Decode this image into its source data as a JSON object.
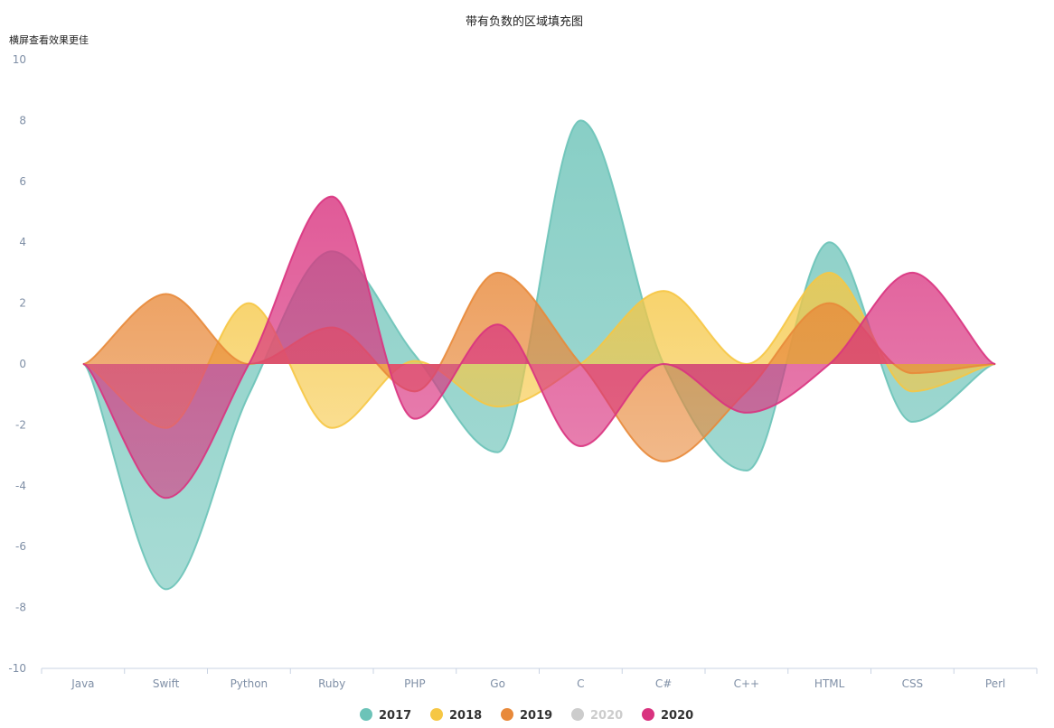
{
  "chart_data": {
    "type": "area",
    "title": "带有负数的区域填充图",
    "subtitle": "横屏查看效果更佳",
    "categories": [
      "Java",
      "Swift",
      "Python",
      "Ruby",
      "PHP",
      "Go",
      "C",
      "C#",
      "C++",
      "HTML",
      "CSS",
      "Perl"
    ],
    "ylim": [
      -10,
      10
    ],
    "yticks": [
      -10,
      -8,
      -6,
      -4,
      -2,
      0,
      2,
      4,
      6,
      8,
      10
    ],
    "grid": false,
    "legend_position": "bottom",
    "series": [
      {
        "name": "2017",
        "color": "#6cc3b8",
        "values": [
          0,
          -7.4,
          -1,
          3.7,
          0.3,
          -2.9,
          8,
          0,
          -3.5,
          4,
          -1.9,
          0
        ],
        "visible": true
      },
      {
        "name": "2018",
        "color": "#f6c744",
        "values": [
          0,
          -2.1,
          2,
          -2.1,
          0.1,
          -1.4,
          0,
          2.4,
          0,
          3,
          -0.9,
          0
        ],
        "visible": true
      },
      {
        "name": "2019",
        "color": "#e8893a",
        "values": [
          0,
          2.3,
          0,
          1.2,
          -0.9,
          3,
          0,
          -3.2,
          -0.9,
          2,
          -0.3,
          0
        ],
        "visible": true
      },
      {
        "name": "2020",
        "color": "#cccccc",
        "values": [
          0,
          0,
          0,
          0,
          0,
          0,
          0,
          0,
          0,
          0,
          0,
          0
        ],
        "visible": false
      },
      {
        "name": "2020",
        "color": "#d9337f",
        "values": [
          0,
          -4.4,
          0,
          5.5,
          -1.8,
          1.3,
          -2.7,
          0,
          -1.6,
          0,
          3,
          0
        ],
        "visible": true
      }
    ]
  }
}
